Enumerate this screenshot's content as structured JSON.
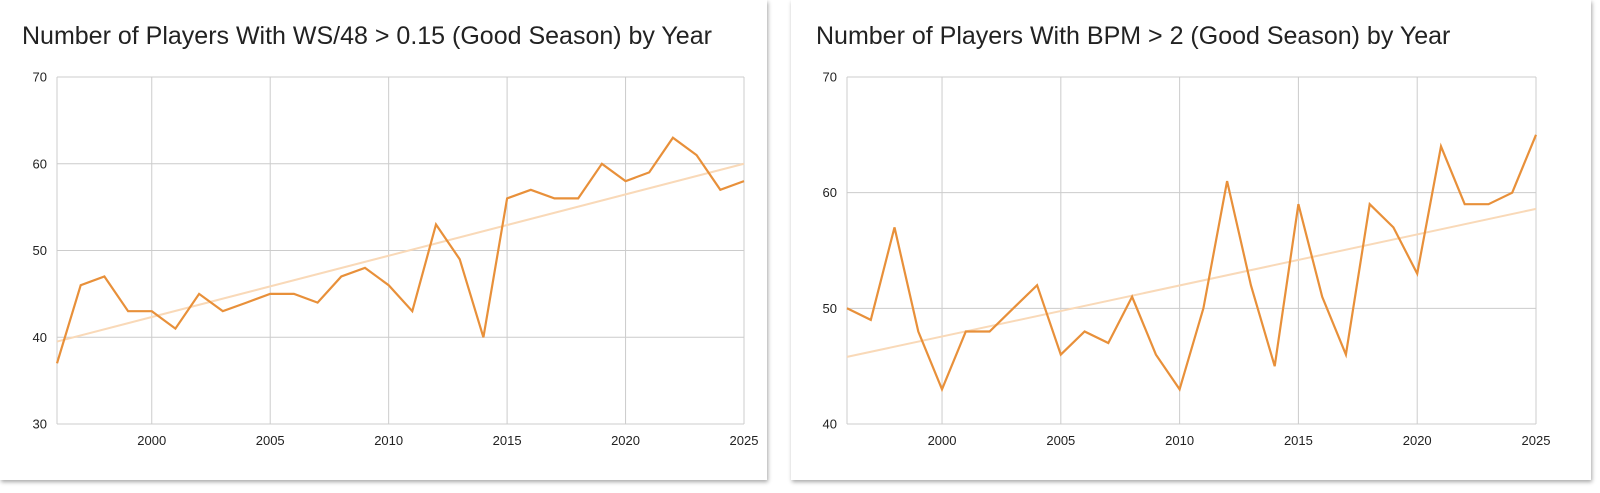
{
  "colors": {
    "line": "#E8903A",
    "trendline": "#F9D9B8",
    "grid": "#CCCCCC",
    "text": "#222222"
  },
  "chart_data": [
    {
      "type": "line",
      "title": "Number of Players With WS/48 > 0.15 (Good Season) by Year",
      "xlabel": "",
      "ylabel": "",
      "xlim": [
        1996,
        2025
      ],
      "ylim": [
        30,
        70
      ],
      "x_ticks": [
        2000,
        2005,
        2010,
        2015,
        2020,
        2025
      ],
      "y_ticks": [
        30,
        40,
        50,
        60,
        70
      ],
      "grid": true,
      "legend": "none",
      "series": [
        {
          "x": [
            1996,
            1997,
            1998,
            1999,
            2000,
            2001,
            2002,
            2003,
            2004,
            2005,
            2006,
            2007,
            2008,
            2009,
            2010,
            2011,
            2012,
            2013,
            2014,
            2015,
            2016,
            2017,
            2018,
            2019,
            2020,
            2021,
            2022,
            2023,
            2024,
            2025
          ],
          "values": [
            37,
            46,
            47,
            43,
            43,
            41,
            45,
            43,
            44,
            45,
            45,
            44,
            47,
            48,
            46,
            43,
            53,
            49,
            40,
            56,
            57,
            56,
            56,
            60,
            58,
            59,
            63,
            61,
            57,
            58
          ]
        }
      ],
      "trendline": {
        "x": [
          1996,
          2025
        ],
        "values": [
          39.5,
          60
        ]
      }
    },
    {
      "type": "line",
      "title": "Number of Players With BPM > 2 (Good Season) by Year",
      "xlabel": "",
      "ylabel": "",
      "xlim": [
        1996,
        2025
      ],
      "ylim": [
        40,
        70
      ],
      "x_ticks": [
        2000,
        2005,
        2010,
        2015,
        2020,
        2025
      ],
      "y_ticks": [
        40,
        50,
        60,
        70
      ],
      "grid": true,
      "legend": "none",
      "series": [
        {
          "x": [
            1996,
            1997,
            1998,
            1999,
            2000,
            2001,
            2002,
            2003,
            2004,
            2005,
            2006,
            2007,
            2008,
            2009,
            2010,
            2011,
            2012,
            2013,
            2014,
            2015,
            2016,
            2017,
            2018,
            2019,
            2020,
            2021,
            2022,
            2023,
            2024,
            2025
          ],
          "values": [
            50,
            49,
            57,
            48,
            43,
            48,
            48,
            50,
            52,
            46,
            48,
            47,
            51,
            46,
            43,
            50,
            61,
            52,
            45,
            59,
            51,
            46,
            59,
            57,
            53,
            64,
            59,
            59,
            60,
            65
          ]
        }
      ],
      "trendline": {
        "x": [
          1996,
          2025
        ],
        "values": [
          45.8,
          58.6
        ]
      }
    }
  ]
}
